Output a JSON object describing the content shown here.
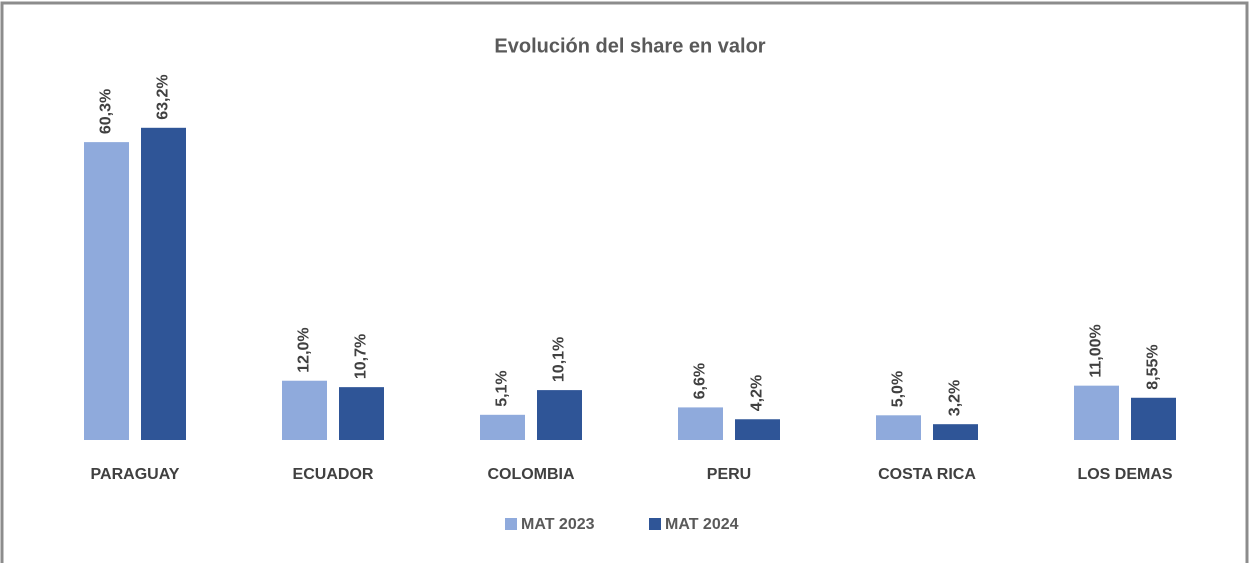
{
  "chart_data": {
    "type": "bar",
    "title": "Evolución del share en valor",
    "categories": [
      "PARAGUAY",
      "ECUADOR",
      "COLOMBIA",
      "PERU",
      "COSTA RICA",
      "LOS DEMAS"
    ],
    "series": [
      {
        "name": "MAT 2023",
        "color": "#8faadc",
        "values": [
          60.3,
          12.0,
          5.1,
          6.6,
          5.0,
          11.0
        ],
        "value_labels": [
          "60,3%",
          "12,0%",
          "5,1%",
          "6,6%",
          "5,0%",
          "11,00%"
        ]
      },
      {
        "name": "MAT 2024",
        "color": "#2f5597",
        "values": [
          63.2,
          10.7,
          10.1,
          4.2,
          3.2,
          8.55
        ],
        "value_labels": [
          "63,2%",
          "10,7%",
          "10,1%",
          "4,2%",
          "3,2%",
          "8,55%"
        ]
      }
    ]
  }
}
